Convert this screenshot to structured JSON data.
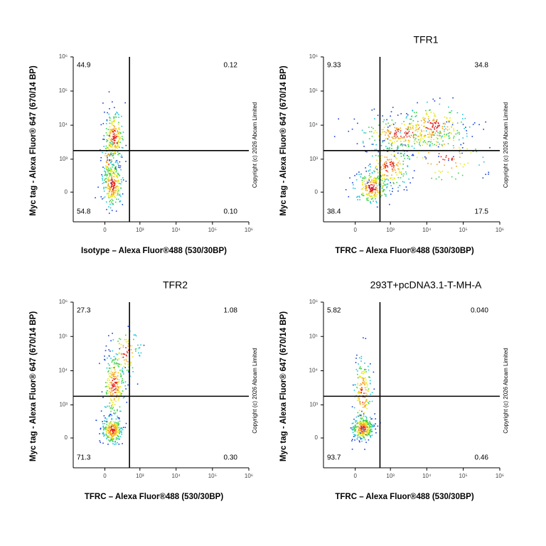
{
  "chart_data": [
    {
      "type": "flow-density",
      "x_label": "Isotype – Alexa Fluor®488 (530/30BP)",
      "y_label": "Myc tag - Alexa Fluor® 647 (670/14 BP)",
      "watermark": "Copyright (c) 2026 Abcam Limited",
      "xlim": [
        -800,
        1000000
      ],
      "ylim": [
        -800,
        1000000
      ],
      "xticks": [
        0,
        {
          "value": 1000,
          "label": "10³"
        },
        {
          "value": 10000,
          "label": "10⁴"
        },
        {
          "value": 100000,
          "label": "10⁵"
        },
        {
          "value": 1000000,
          "label": "10⁶"
        }
      ],
      "yticks": [
        0,
        {
          "value": 1000,
          "label": "10³"
        },
        {
          "value": 10000,
          "label": "10⁴"
        },
        {
          "value": 100000,
          "label": "10⁵"
        },
        {
          "value": 1000000,
          "label": "10⁶"
        }
      ],
      "gate_x": 500,
      "gate_y": 1800,
      "quadrants": {
        "values": [
          44.9,
          0.12,
          54.8,
          0.1
        ],
        "value_labels": [
          "44.9",
          "0.12",
          "54.8",
          "0.10"
        ]
      }
    },
    {
      "type": "flow-density",
      "title": "TFR1",
      "x_label": "TFRC – Alexa Fluor®488 (530/30BP)",
      "y_label": "Myc tag - Alexa Fluor® 647 (670/14 BP)",
      "watermark": "Copyright (c) 2026 Abcam Limited",
      "xlim": [
        -800,
        1000000
      ],
      "ylim": [
        -800,
        1000000
      ],
      "xticks": [
        0,
        {
          "value": 1000,
          "label": "10³"
        },
        {
          "value": 10000,
          "label": "10⁴"
        },
        {
          "value": 100000,
          "label": "10⁵"
        },
        {
          "value": 1000000,
          "label": "10⁶"
        }
      ],
      "yticks": [
        0,
        {
          "value": 1000,
          "label": "10³"
        },
        {
          "value": 10000,
          "label": "10⁴"
        },
        {
          "value": 100000,
          "label": "10⁵"
        },
        {
          "value": 1000000,
          "label": "10⁶"
        }
      ],
      "gate_x": 500,
      "gate_y": 1800,
      "quadrants": {
        "values": [
          9.33,
          34.8,
          38.4,
          17.5
        ],
        "value_labels": [
          "9.33",
          "34.8",
          "38.4",
          "17.5"
        ]
      }
    },
    {
      "type": "flow-density",
      "title": "TFR2",
      "x_label": "TFRC – Alexa Fluor®488 (530/30BP)",
      "y_label": "Myc tag - Alexa Fluor® 647 (670/14 BP)",
      "watermark": "Copyright (c) 2026 Abcam Limited",
      "xlim": [
        -800,
        1000000
      ],
      "ylim": [
        -800,
        1000000
      ],
      "xticks": [
        0,
        {
          "value": 1000,
          "label": "10³"
        },
        {
          "value": 10000,
          "label": "10⁴"
        },
        {
          "value": 100000,
          "label": "10⁵"
        },
        {
          "value": 1000000,
          "label": "10⁶"
        }
      ],
      "yticks": [
        0,
        {
          "value": 1000,
          "label": "10³"
        },
        {
          "value": 10000,
          "label": "10⁴"
        },
        {
          "value": 100000,
          "label": "10⁵"
        },
        {
          "value": 1000000,
          "label": "10⁶"
        }
      ],
      "gate_x": 500,
      "gate_y": 1800,
      "quadrants": {
        "values": [
          27.3,
          1.08,
          71.3,
          0.3
        ],
        "value_labels": [
          "27.3",
          "1.08",
          "71.3",
          "0.30"
        ]
      }
    },
    {
      "type": "flow-density",
      "title": "293T+pcDNA3.1-T-MH-A",
      "x_label": "TFRC – Alexa Fluor®488 (530/30BP)",
      "y_label": "Myc tag - Alexa Fluor® 647 (670/14 BP)",
      "watermark": "Copyright (c) 2026 Abcam Limited",
      "xlim": [
        -800,
        1000000
      ],
      "ylim": [
        -800,
        1000000
      ],
      "xticks": [
        0,
        {
          "value": 1000,
          "label": "10³"
        },
        {
          "value": 10000,
          "label": "10⁴"
        },
        {
          "value": 100000,
          "label": "10⁵"
        },
        {
          "value": 1000000,
          "label": "10⁶"
        }
      ],
      "yticks": [
        0,
        {
          "value": 1000,
          "label": "10³"
        },
        {
          "value": 10000,
          "label": "10⁴"
        },
        {
          "value": 100000,
          "label": "10⁵"
        },
        {
          "value": 1000000,
          "label": "10⁶"
        }
      ],
      "gate_x": 500,
      "gate_y": 1800,
      "quadrants": {
        "values": [
          5.82,
          0.04,
          93.7,
          0.46
        ],
        "value_labels": [
          "5.82",
          "0.040",
          "93.7",
          "0.46"
        ]
      }
    }
  ]
}
